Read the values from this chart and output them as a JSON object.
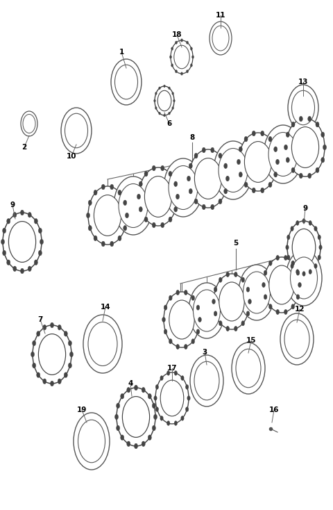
{
  "background_color": "#ffffff",
  "fig_width": 4.8,
  "fig_height": 7.34,
  "dpi": 100,
  "label_fontsize": 7.5,
  "line_color": "#666666",
  "ellipse_color": "#555555"
}
